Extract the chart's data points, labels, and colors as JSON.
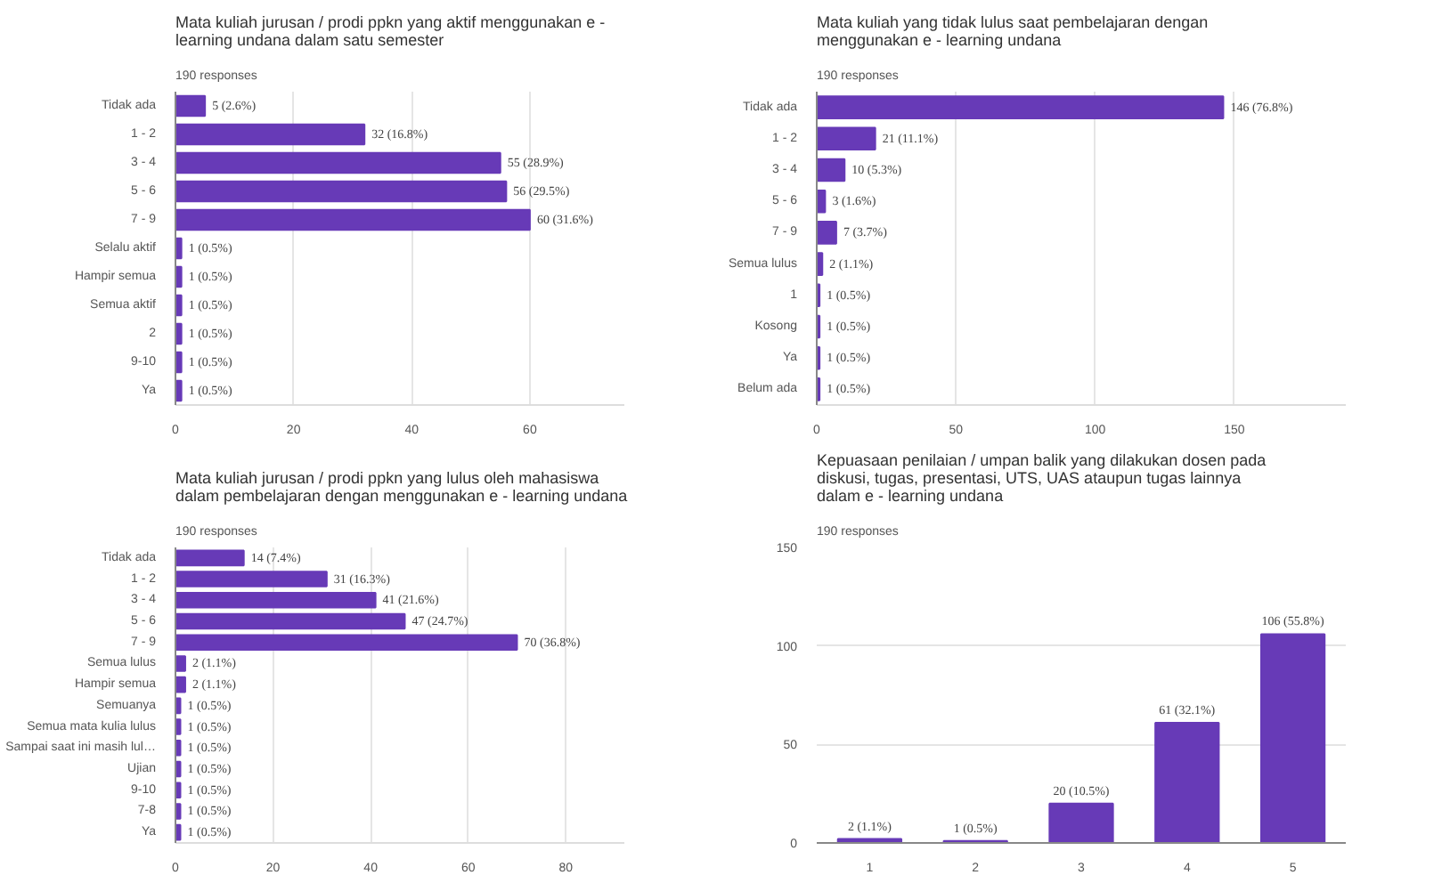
{
  "chart_data": [
    {
      "type": "bar",
      "orientation": "horizontal",
      "title": "Mata kuliah jurusan / prodi ppkn yang aktif menggunakan e - learning undana dalam satu semester",
      "subtitle": "190 responses",
      "categories": [
        "Tidak ada",
        "1 - 2",
        "3 - 4",
        "5 - 6",
        "7 - 9",
        "Selalu aktif",
        "Hampir semua",
        "Semua aktif",
        "2",
        "9-10",
        "Ya"
      ],
      "values": [
        5,
        32,
        55,
        56,
        60,
        1,
        1,
        1,
        1,
        1,
        1
      ],
      "value_labels": [
        "5 (2.6%)",
        "32 (16.8%)",
        "55 (28.9%)",
        "56 (29.5%)",
        "60 (31.6%)",
        "1 (0.5%)",
        "1 (0.5%)",
        "1 (0.5%)",
        "1 (0.5%)",
        "1 (0.5%)",
        "1 (0.5%)"
      ],
      "color": "#673ab7",
      "xlim": [
        0,
        76
      ],
      "xticks": [
        0,
        20,
        40,
        60
      ],
      "grid": "x"
    },
    {
      "type": "bar",
      "orientation": "horizontal",
      "title": "Mata kuliah yang tidak lulus saat pembelajaran dengan menggunakan e - learning undana",
      "subtitle": "190 responses",
      "categories": [
        "Tidak ada",
        "1 - 2",
        "3 - 4",
        "5 - 6",
        "7 - 9",
        "Semua lulus",
        "1",
        "Kosong",
        "Ya",
        "Belum ada"
      ],
      "values": [
        146,
        21,
        10,
        3,
        7,
        2,
        1,
        1,
        1,
        1
      ],
      "value_labels": [
        "146 (76.8%)",
        "21 (11.1%)",
        "10 (5.3%)",
        "3 (1.6%)",
        "7 (3.7%)",
        "2 (1.1%)",
        "1 (0.5%)",
        "1 (0.5%)",
        "1 (0.5%)",
        "1 (0.5%)"
      ],
      "color": "#673ab7",
      "xlim": [
        0,
        190
      ],
      "xticks": [
        0,
        50,
        100,
        150
      ],
      "grid": "x"
    },
    {
      "type": "bar",
      "orientation": "horizontal",
      "title": "Mata kuliah jurusan / prodi ppkn yang lulus oleh mahasiswa dalam pembelajaran dengan menggunakan e - learning undana",
      "subtitle": "190 responses",
      "categories": [
        "Tidak ada",
        "1 - 2",
        "3 - 4",
        "5 - 6",
        "7 - 9",
        "Semua lulus",
        "Hampir semua",
        "Semuanya",
        "Semua mata kulia lulus",
        "Sampai saat ini masih lul…",
        "Ujian",
        "9-10",
        "7-8",
        "Ya"
      ],
      "values": [
        14,
        31,
        41,
        47,
        70,
        2,
        2,
        1,
        1,
        1,
        1,
        1,
        1,
        1
      ],
      "value_labels": [
        "14 (7.4%)",
        "31 (16.3%)",
        "41 (21.6%)",
        "47 (24.7%)",
        "70 (36.8%)",
        "2 (1.1%)",
        "2 (1.1%)",
        "1 (0.5%)",
        "1 (0.5%)",
        "1 (0.5%)",
        "1 (0.5%)",
        "1 (0.5%)",
        "1 (0.5%)",
        "1 (0.5%)"
      ],
      "color": "#673ab7",
      "xlim": [
        0,
        92
      ],
      "xticks": [
        0,
        20,
        40,
        60,
        80
      ],
      "grid": "x"
    },
    {
      "type": "bar",
      "title": "Kepuasaan penilaian / umpan balik yang dilakukan dosen pada diskusi, tugas, presentasi, UTS, UAS ataupun tugas lainnya dalam e - learning undana",
      "subtitle": "190 responses",
      "categories": [
        "1",
        "2",
        "3",
        "4",
        "5"
      ],
      "values": [
        2,
        1,
        20,
        61,
        106
      ],
      "value_labels": [
        "2 (1.1%)",
        "1 (0.5%)",
        "20 (10.5%)",
        "61 (32.1%)",
        "106 (55.8%)"
      ],
      "color": "#673ab7",
      "ylim": [
        0,
        150
      ],
      "yticks": [
        0,
        50,
        100,
        150
      ],
      "grid": "y"
    }
  ]
}
